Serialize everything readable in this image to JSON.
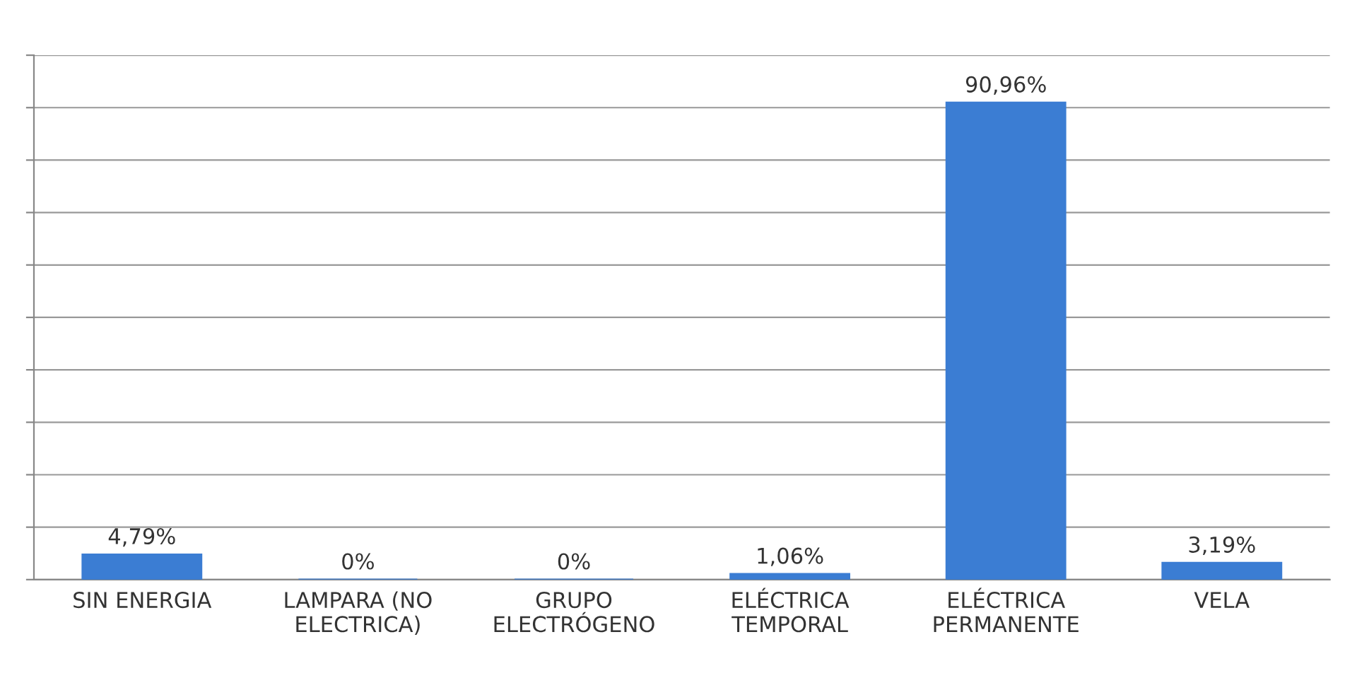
{
  "chart_data": {
    "type": "bar",
    "categories": [
      "SIN ENERGIA",
      "LAMPARA (NO\nELECTRICA)",
      "GRUPO\nELECTRÓGENO",
      "ELÉCTRICA\nTEMPORAL",
      "ELÉCTRICA\nPERMANENTE",
      "VELA"
    ],
    "values": [
      4.79,
      0,
      0,
      1.06,
      90.96,
      3.19
    ],
    "value_labels": [
      "4,79%",
      "0%",
      "0%",
      "1,06%",
      "90,96%",
      "3,19%"
    ],
    "color": "#3b7dd3",
    "ylim": [
      0,
      100
    ],
    "yticks": [
      {
        "value": 0,
        "label": null
      },
      {
        "value": 10,
        "label": null
      },
      {
        "value": 20,
        "label": null
      },
      {
        "value": 30,
        "label": null
      },
      {
        "value": 40,
        "label": null
      },
      {
        "value": 50,
        "label": null
      },
      {
        "value": 60,
        "label": null
      },
      {
        "value": 70,
        "label": null
      },
      {
        "value": 80,
        "label": null
      },
      {
        "value": 90,
        "label": null
      },
      {
        "value": 100,
        "label": null
      }
    ],
    "grid": "y",
    "tick_labels": "x"
  }
}
